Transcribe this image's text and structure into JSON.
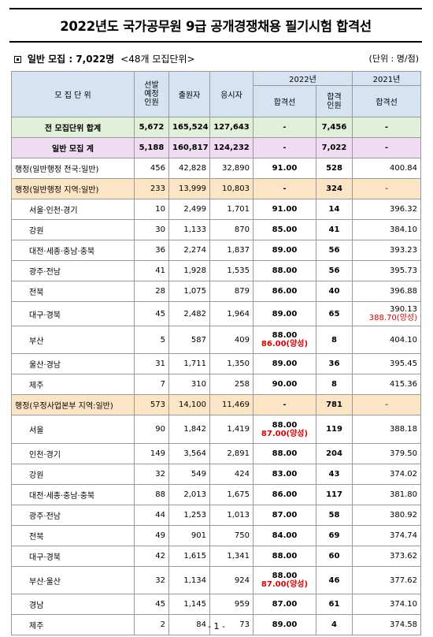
{
  "title": "2022년도 국가공무원 9급 공개경쟁채용 필기시험 합격선",
  "section": {
    "label": "일반 모집 : 7,022명",
    "count": "<48개 모집단위>",
    "unit": "(단위 : 명/점)"
  },
  "headers": {
    "unit": "모 집 단 위",
    "planned": "선발 예정 인원",
    "applicants": "출원자",
    "takers": "응시자",
    "y2022": "2022년",
    "y2021": "2021년",
    "cutoff": "합격선",
    "passers": "합격 인원",
    "cutoff2021": "합격선"
  },
  "rows": [
    {
      "type": "tot",
      "name": "전 모집단위 합계",
      "planned": "5,672",
      "applicants": "165,524",
      "takers": "127,643",
      "cutoff": "-",
      "passers": "7,456",
      "cutoff2021": "-"
    },
    {
      "type": "gen",
      "name": "일반 모집 계",
      "planned": "5,188",
      "applicants": "160,817",
      "takers": "124,232",
      "cutoff": "-",
      "passers": "7,022",
      "cutoff2021": "-"
    },
    {
      "type": "plain",
      "name": "행정(일반행정 전국:일반)",
      "planned": "456",
      "applicants": "42,828",
      "takers": "32,890",
      "cutoff": "91.00",
      "passers": "528",
      "cutoff2021": "400.84"
    },
    {
      "type": "grp",
      "name": "행정(일반행정 지역:일반)",
      "planned": "233",
      "applicants": "13,999",
      "takers": "10,803",
      "cutoff": "-",
      "passers": "324",
      "cutoff2021": "-"
    },
    {
      "type": "sub",
      "name": "서울·인천·경기",
      "planned": "10",
      "applicants": "2,499",
      "takers": "1,701",
      "cutoff": "91.00",
      "passers": "14",
      "cutoff2021": "396.32"
    },
    {
      "type": "sub",
      "name": "강원",
      "planned": "30",
      "applicants": "1,133",
      "takers": "870",
      "cutoff": "85.00",
      "passers": "41",
      "cutoff2021": "384.10"
    },
    {
      "type": "sub",
      "name": "대전·세종·충남·충북",
      "planned": "36",
      "applicants": "2,274",
      "takers": "1,837",
      "cutoff": "89.00",
      "passers": "56",
      "cutoff2021": "393.23"
    },
    {
      "type": "sub",
      "name": "광주·전남",
      "planned": "41",
      "applicants": "1,928",
      "takers": "1,535",
      "cutoff": "88.00",
      "passers": "56",
      "cutoff2021": "395.73"
    },
    {
      "type": "sub",
      "name": "전북",
      "planned": "28",
      "applicants": "1,075",
      "takers": "879",
      "cutoff": "86.00",
      "passers": "40",
      "cutoff2021": "396.88"
    },
    {
      "type": "sub",
      "name": "대구·경북",
      "planned": "45",
      "applicants": "2,482",
      "takers": "1,964",
      "cutoff": "89.00",
      "passers": "65",
      "cutoff2021": "390.13",
      "cutoff2021_extra": "388.70(양성)"
    },
    {
      "type": "sub",
      "name": "부산",
      "planned": "5",
      "applicants": "587",
      "takers": "409",
      "cutoff": "88.00",
      "cutoff_extra": "86.00(양성)",
      "passers": "8",
      "cutoff2021": "404.10"
    },
    {
      "type": "sub",
      "name": "울산·경남",
      "planned": "31",
      "applicants": "1,711",
      "takers": "1,350",
      "cutoff": "89.00",
      "passers": "36",
      "cutoff2021": "395.45"
    },
    {
      "type": "sub",
      "name": "제주",
      "planned": "7",
      "applicants": "310",
      "takers": "258",
      "cutoff": "90.00",
      "passers": "8",
      "cutoff2021": "415.36"
    },
    {
      "type": "grp",
      "name": "행정(우정사업본부 지역:일반)",
      "planned": "573",
      "applicants": "14,100",
      "takers": "11,469",
      "cutoff": "-",
      "passers": "781",
      "cutoff2021": "-"
    },
    {
      "type": "sub",
      "name": "서울",
      "planned": "90",
      "applicants": "1,842",
      "takers": "1,419",
      "cutoff": "88.00",
      "cutoff_extra": "87.00(양성)",
      "passers": "119",
      "cutoff2021": "388.18"
    },
    {
      "type": "sub",
      "name": "인천·경기",
      "planned": "149",
      "applicants": "3,564",
      "takers": "2,891",
      "cutoff": "88.00",
      "passers": "204",
      "cutoff2021": "379.50"
    },
    {
      "type": "sub",
      "name": "강원",
      "planned": "32",
      "applicants": "549",
      "takers": "424",
      "cutoff": "83.00",
      "passers": "43",
      "cutoff2021": "374.02"
    },
    {
      "type": "sub",
      "name": "대전·세종·충남·충북",
      "planned": "88",
      "applicants": "2,013",
      "takers": "1,675",
      "cutoff": "86.00",
      "passers": "117",
      "cutoff2021": "381.80"
    },
    {
      "type": "sub",
      "name": "광주·전남",
      "planned": "44",
      "applicants": "1,253",
      "takers": "1,013",
      "cutoff": "87.00",
      "passers": "58",
      "cutoff2021": "380.92"
    },
    {
      "type": "sub",
      "name": "전북",
      "planned": "49",
      "applicants": "901",
      "takers": "750",
      "cutoff": "84.00",
      "passers": "69",
      "cutoff2021": "374.74"
    },
    {
      "type": "sub",
      "name": "대구·경북",
      "planned": "42",
      "applicants": "1,615",
      "takers": "1,341",
      "cutoff": "88.00",
      "passers": "60",
      "cutoff2021": "373.62"
    },
    {
      "type": "sub",
      "name": "부산·울산",
      "planned": "32",
      "applicants": "1,134",
      "takers": "924",
      "cutoff": "88.00",
      "cutoff_extra": "87.00(양성)",
      "passers": "46",
      "cutoff2021": "377.62"
    },
    {
      "type": "sub",
      "name": "경남",
      "planned": "45",
      "applicants": "1,145",
      "takers": "959",
      "cutoff": "87.00",
      "passers": "61",
      "cutoff2021": "374.10"
    },
    {
      "type": "sub",
      "name": "제주",
      "planned": "2",
      "applicants": "84",
      "takers": "73",
      "cutoff": "89.00",
      "passers": "4",
      "cutoff2021": "374.58"
    }
  ],
  "footer": "- 1 -"
}
